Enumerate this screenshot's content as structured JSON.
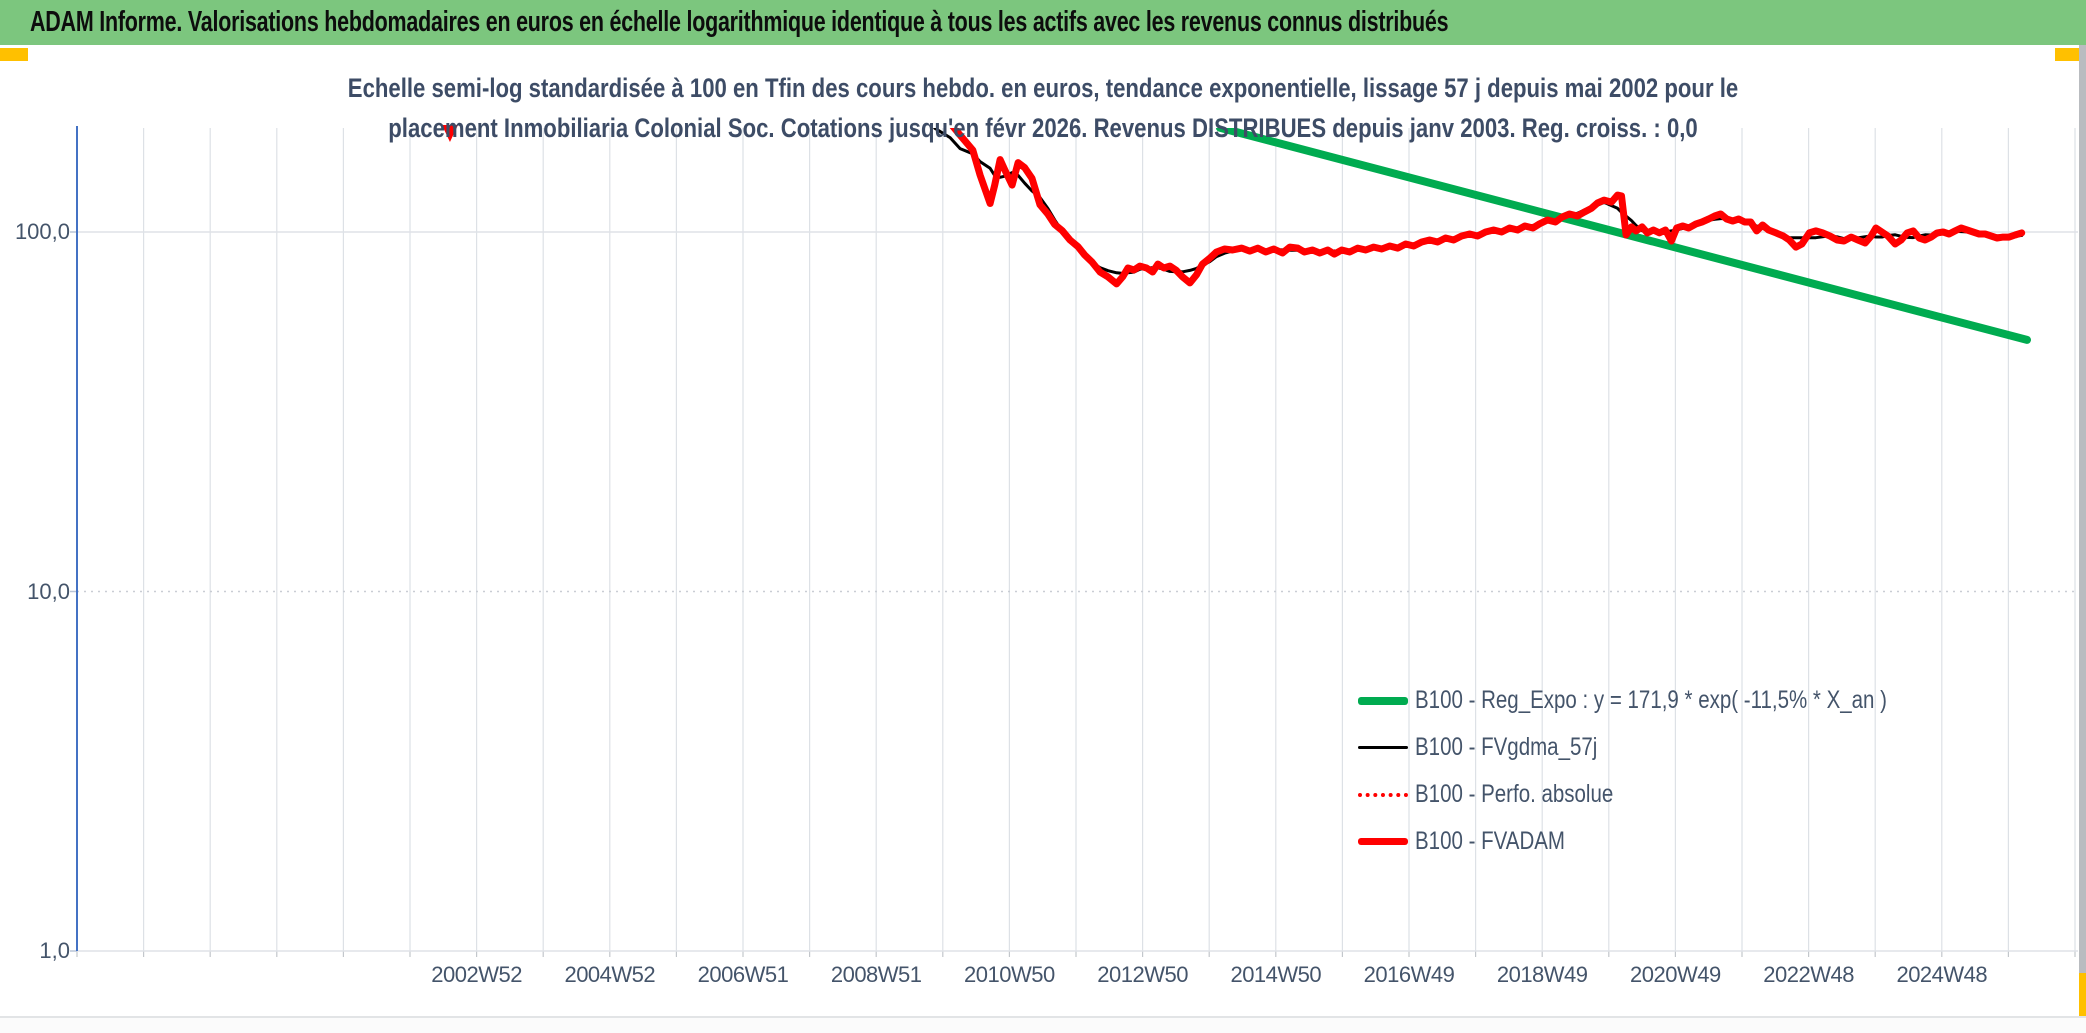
{
  "window": {
    "header_title": "ADAM Informe. Valorisations hebdomadaires en euros en échelle logarithmique identique à tous les actifs avec les revenus connus distribués",
    "colors": {
      "header_bg": "#7cc67e",
      "accent_orange": "#ffc000"
    }
  },
  "chart_data": {
    "type": "line",
    "title_line1": "Echelle semi-log standardisée à 100 en Tfin des cours hebdo. en euros, tendance exponentielle, lissage 57 j depuis mai 2002 pour le",
    "title_line2": "placement Inmobiliaria Colonial Soc. Cotations jusqu'en févr 2026. Revenus DISTRIBUES depuis janv 2003. Reg. croiss. : 0,0",
    "y_scale": "log",
    "grid": true,
    "legend_position": "right-middle",
    "x_range_years": [
      1997.0,
      2027.05
    ],
    "y_range": [
      1.0,
      194.6
    ],
    "colors": {
      "axis_line": "#4472c4",
      "gridline": "#dde1e6",
      "grid_dotted": "#c9cdd4",
      "text": "#44546a"
    },
    "y_ticks": [
      {
        "label": "100,0",
        "value": 100
      },
      {
        "label": "10,0",
        "value": 10
      },
      {
        "label": "1,0",
        "value": 1
      }
    ],
    "x_ticks": [
      {
        "label": "2002W52",
        "year": 2003
      },
      {
        "label": "2004W52",
        "year": 2005
      },
      {
        "label": "2006W51",
        "year": 2007
      },
      {
        "label": "2008W51",
        "year": 2009
      },
      {
        "label": "2010W50",
        "year": 2011
      },
      {
        "label": "2012W50",
        "year": 2013
      },
      {
        "label": "2014W50",
        "year": 2015
      },
      {
        "label": "2016W49",
        "year": 2017
      },
      {
        "label": "2018W49",
        "year": 2019
      },
      {
        "label": "2020W49",
        "year": 2021
      },
      {
        "label": "2022W48",
        "year": 2023
      },
      {
        "label": "2024W48",
        "year": 2025
      }
    ],
    "clipped_spike": {
      "year": 2002.6,
      "value": 192
    },
    "series": [
      {
        "name": "B100 - Reg_Expo : y = 171,9 * exp( -11,5% *  X_an )",
        "color": "#00ab50",
        "width": 8,
        "style": "solid",
        "points": [
          [
            2014.16,
            195
          ],
          [
            2026.28,
            50.1
          ]
        ]
      },
      {
        "name": "B100 - FVgdma_57j",
        "color": "#000000",
        "width": 3,
        "style": "solid",
        "derived": "moving-average-of-FVADAM"
      },
      {
        "name": "B100 - Perfo. absolue",
        "color": "#ff0000",
        "width": 2.5,
        "style": "dotted",
        "points_ref": "FVADAM"
      },
      {
        "name": "B100 - FVADAM",
        "color": "#ff0000",
        "width": 7,
        "style": "solid",
        "points": [
          [
            2009.88,
            226
          ],
          [
            2010.11,
            201
          ],
          [
            2010.26,
            186
          ],
          [
            2010.45,
            169
          ],
          [
            2010.56,
            144
          ],
          [
            2010.71,
            120
          ],
          [
            2010.78,
            135
          ],
          [
            2010.86,
            159
          ],
          [
            2010.93,
            149
          ],
          [
            2011.04,
            135
          ],
          [
            2011.13,
            156
          ],
          [
            2011.23,
            151
          ],
          [
            2011.34,
            141
          ],
          [
            2011.46,
            119
          ],
          [
            2011.58,
            112
          ],
          [
            2011.68,
            105
          ],
          [
            2011.79,
            101
          ],
          [
            2011.91,
            95
          ],
          [
            2012.03,
            91
          ],
          [
            2012.13,
            86.3
          ],
          [
            2012.24,
            82.5
          ],
          [
            2012.36,
            77.4
          ],
          [
            2012.48,
            75
          ],
          [
            2012.61,
            71.7
          ],
          [
            2012.7,
            75
          ],
          [
            2012.78,
            79.4
          ],
          [
            2012.87,
            78.4
          ],
          [
            2012.96,
            80.4
          ],
          [
            2013.06,
            79.4
          ],
          [
            2013.15,
            77.4
          ],
          [
            2013.23,
            81.4
          ],
          [
            2013.32,
            79.4
          ],
          [
            2013.41,
            80.4
          ],
          [
            2013.5,
            78.4
          ],
          [
            2013.6,
            75
          ],
          [
            2013.71,
            72.2
          ],
          [
            2013.81,
            76
          ],
          [
            2013.9,
            81.4
          ],
          [
            2014.01,
            84.6
          ],
          [
            2014.11,
            88
          ],
          [
            2014.23,
            89.7
          ],
          [
            2014.35,
            89.1
          ],
          [
            2014.49,
            90.2
          ],
          [
            2014.61,
            88.5
          ],
          [
            2014.73,
            90.2
          ],
          [
            2014.85,
            88
          ],
          [
            2014.97,
            89.7
          ],
          [
            2015.1,
            87.4
          ],
          [
            2015.21,
            90.8
          ],
          [
            2015.33,
            90.2
          ],
          [
            2015.43,
            88
          ],
          [
            2015.55,
            89.1
          ],
          [
            2015.66,
            87.4
          ],
          [
            2015.78,
            89.1
          ],
          [
            2015.88,
            86.8
          ],
          [
            2015.99,
            89.1
          ],
          [
            2016.11,
            88
          ],
          [
            2016.23,
            90.2
          ],
          [
            2016.35,
            89.1
          ],
          [
            2016.47,
            90.8
          ],
          [
            2016.59,
            89.7
          ],
          [
            2016.71,
            91.4
          ],
          [
            2016.83,
            90.2
          ],
          [
            2016.95,
            92.6
          ],
          [
            2017.07,
            91.4
          ],
          [
            2017.19,
            93.8
          ],
          [
            2017.31,
            95
          ],
          [
            2017.43,
            93.8
          ],
          [
            2017.55,
            96.2
          ],
          [
            2017.67,
            95
          ],
          [
            2017.79,
            97.5
          ],
          [
            2017.91,
            98.7
          ],
          [
            2018.03,
            97.5
          ],
          [
            2018.15,
            100
          ],
          [
            2018.27,
            101.3
          ],
          [
            2018.39,
            100
          ],
          [
            2018.51,
            102.6
          ],
          [
            2018.63,
            101.3
          ],
          [
            2018.74,
            103.9
          ],
          [
            2018.86,
            102.6
          ],
          [
            2018.96,
            105.3
          ],
          [
            2019.08,
            108
          ],
          [
            2019.2,
            106.6
          ],
          [
            2019.3,
            110.1
          ],
          [
            2019.41,
            112.2
          ],
          [
            2019.53,
            110.8
          ],
          [
            2019.63,
            113.6
          ],
          [
            2019.74,
            116.4
          ],
          [
            2019.83,
            120.4
          ],
          [
            2019.93,
            122.7
          ],
          [
            2020.04,
            121.1
          ],
          [
            2020.13,
            126.7
          ],
          [
            2020.19,
            126
          ],
          [
            2020.26,
            98.1
          ],
          [
            2020.34,
            103.3
          ],
          [
            2020.41,
            100.7
          ],
          [
            2020.5,
            103.3
          ],
          [
            2020.58,
            99.4
          ],
          [
            2020.67,
            101.3
          ],
          [
            2020.76,
            99.4
          ],
          [
            2020.85,
            101.3
          ],
          [
            2020.94,
            94.4
          ],
          [
            2021.02,
            102.6
          ],
          [
            2021.11,
            103.9
          ],
          [
            2021.2,
            102.6
          ],
          [
            2021.31,
            105.3
          ],
          [
            2021.4,
            106.6
          ],
          [
            2021.5,
            108.7
          ],
          [
            2021.59,
            110.8
          ],
          [
            2021.68,
            112.2
          ],
          [
            2021.77,
            108.7
          ],
          [
            2021.86,
            107.3
          ],
          [
            2021.95,
            108.7
          ],
          [
            2022.04,
            106.6
          ],
          [
            2022.13,
            106.6
          ],
          [
            2022.22,
            100.7
          ],
          [
            2022.31,
            104.6
          ],
          [
            2022.4,
            101.3
          ],
          [
            2022.51,
            99.4
          ],
          [
            2022.62,
            97.5
          ],
          [
            2022.71,
            95
          ],
          [
            2022.81,
            90.8
          ],
          [
            2022.9,
            92.6
          ],
          [
            2023.01,
            99.4
          ],
          [
            2023.11,
            100.7
          ],
          [
            2023.21,
            99.4
          ],
          [
            2023.32,
            97.5
          ],
          [
            2023.43,
            95
          ],
          [
            2023.53,
            94.4
          ],
          [
            2023.64,
            96.8
          ],
          [
            2023.74,
            95
          ],
          [
            2023.85,
            93.2
          ],
          [
            2023.94,
            97.5
          ],
          [
            2024.01,
            102.6
          ],
          [
            2024.1,
            100
          ],
          [
            2024.19,
            97.5
          ],
          [
            2024.3,
            92.6
          ],
          [
            2024.39,
            95
          ],
          [
            2024.48,
            99.4
          ],
          [
            2024.57,
            100.7
          ],
          [
            2024.66,
            96.2
          ],
          [
            2024.75,
            95
          ],
          [
            2024.84,
            96.8
          ],
          [
            2024.93,
            99.4
          ],
          [
            2025.02,
            100
          ],
          [
            2025.11,
            98.7
          ],
          [
            2025.2,
            100.7
          ],
          [
            2025.29,
            102.6
          ],
          [
            2025.38,
            101.3
          ],
          [
            2025.47,
            100
          ],
          [
            2025.56,
            98.7
          ],
          [
            2025.65,
            98.7
          ],
          [
            2025.74,
            97.5
          ],
          [
            2025.83,
            96.2
          ],
          [
            2025.92,
            96.8
          ],
          [
            2026.01,
            96.8
          ],
          [
            2026.1,
            98.1
          ],
          [
            2026.2,
            99.4
          ]
        ]
      }
    ]
  }
}
